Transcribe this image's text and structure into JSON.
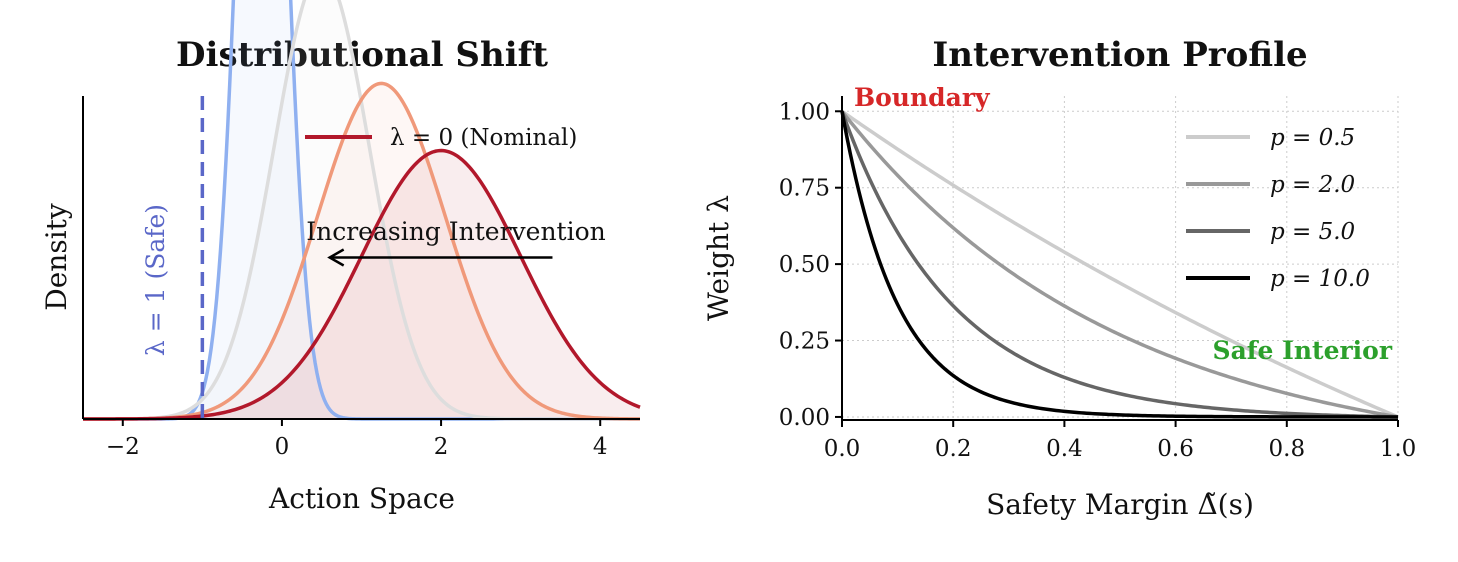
{
  "chart_data": [
    {
      "type": "line",
      "title": "Distributional Shift",
      "xlabel": "Action Space",
      "ylabel": "Density",
      "xlim": [
        -2.5,
        4.5
      ],
      "ylim": [
        0,
        0.48
      ],
      "xticks": [
        -2,
        0,
        2,
        4
      ],
      "xtick_labels": [
        "−2",
        "0",
        "2",
        "4"
      ],
      "y_tick_labels_shown": false,
      "grid": false,
      "legend_position": "top-right",
      "legend": [
        {
          "label": "λ = 0 (Nominal)",
          "color": "#b2182b"
        }
      ],
      "safe_line": {
        "x": -1.0,
        "label": "λ = 1 (Safe)",
        "color": "#5a67c8"
      },
      "annotation": {
        "text": "Increasing Intervention",
        "arrow_from_x": 3.4,
        "arrow_to_x": 0.6,
        "y": 0.24
      },
      "series": [
        {
          "mean": -0.25,
          "sd": 0.28,
          "color": "#8fb0f0",
          "fill": true
        },
        {
          "mean": 0.5,
          "sd": 0.6,
          "color": "#dddddd",
          "fill": true
        },
        {
          "mean": 1.25,
          "sd": 0.8,
          "color": "#f0997a",
          "fill": true
        },
        {
          "name": "λ = 0 (Nominal)",
          "mean": 2.0,
          "sd": 1.0,
          "color": "#b2182b",
          "fill": true
        }
      ]
    },
    {
      "type": "line",
      "title": "Intervention Profile",
      "xlabel": "Safety Margin Δ̃(s)",
      "ylabel": "Weight λ",
      "xlim": [
        0,
        1
      ],
      "ylim": [
        -0.01,
        1.05
      ],
      "xticks": [
        0,
        0.2,
        0.4,
        0.6,
        0.8,
        1.0
      ],
      "xtick_labels": [
        "0.0",
        "0.2",
        "0.4",
        "0.6",
        "0.8",
        "1.0"
      ],
      "yticks": [
        0,
        0.25,
        0.5,
        0.75,
        1.0
      ],
      "ytick_labels": [
        "0.00",
        "0.25",
        "0.50",
        "0.75",
        "1.00"
      ],
      "grid": true,
      "legend_position": "top-right",
      "annotations": [
        {
          "text": "Boundary",
          "color": "#d62728"
        },
        {
          "text": "Safe Interior",
          "color": "#2ca02c"
        }
      ],
      "series": [
        {
          "name": "p = 0.5",
          "p": 0.5,
          "color": "#cccccc"
        },
        {
          "name": "p = 2.0",
          "p": 2.0,
          "color": "#999999"
        },
        {
          "name": "p = 5.0",
          "p": 5.0,
          "color": "#666666"
        },
        {
          "name": "p = 10.0",
          "p": 10.0,
          "color": "#000000"
        }
      ]
    }
  ]
}
